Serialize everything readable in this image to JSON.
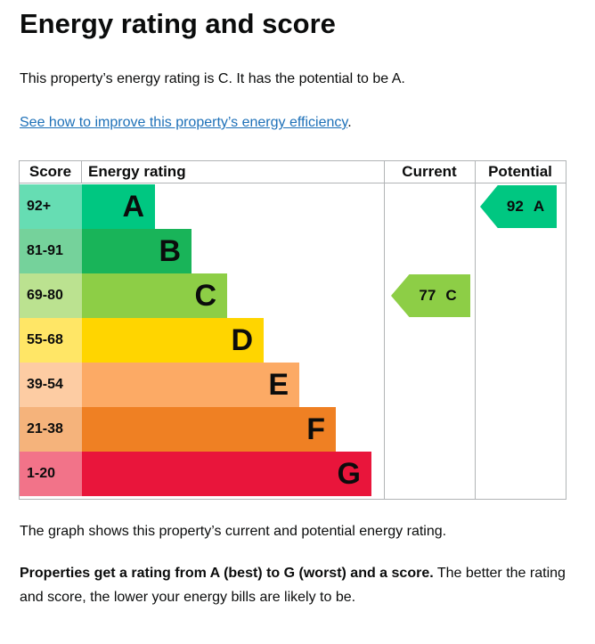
{
  "page": {
    "title": "Energy rating and score",
    "intro": "This property’s energy rating is C. It has the potential to be A.",
    "link_text": "See how to improve this property’s energy efficiency",
    "link_suffix": ".",
    "caption": "The graph shows this property’s current and potential energy rating.",
    "footer_bold": "Properties get a rating from A (best) to G (worst) and a score.",
    "footer_rest": " The better the rating and score, the lower your energy bills are likely to be."
  },
  "colors": {
    "text": "#0b0c0c",
    "link_blue": "#1d70b8",
    "table_border": "#b1b4b6"
  },
  "chart_data": {
    "type": "bar",
    "orientation": "horizontal",
    "title": "Energy rating and score",
    "columns": [
      "Score",
      "Energy rating",
      "Current",
      "Potential"
    ],
    "bands": [
      {
        "letter": "A",
        "score_range": "92+",
        "color": "#00c781",
        "tint": "#66ddb3"
      },
      {
        "letter": "B",
        "score_range": "81-91",
        "color": "#19b459",
        "tint": "#75d29b"
      },
      {
        "letter": "C",
        "score_range": "69-80",
        "color": "#8dce46",
        "tint": "#bbe290"
      },
      {
        "letter": "D",
        "score_range": "55-68",
        "color": "#ffd500",
        "tint": "#ffe666"
      },
      {
        "letter": "E",
        "score_range": "39-54",
        "color": "#fcaa65",
        "tint": "#fdcca3"
      },
      {
        "letter": "F",
        "score_range": "21-38",
        "color": "#ef8023",
        "tint": "#f5b37b"
      },
      {
        "letter": "G",
        "score_range": "1-20",
        "color": "#e9153b",
        "tint": "#f27389"
      }
    ],
    "markers": [
      {
        "label": "Current",
        "score": "77",
        "band": "C",
        "color": "#8dce46"
      },
      {
        "label": "Potential",
        "score": "92",
        "band": "A",
        "color": "#00c781"
      }
    ]
  }
}
